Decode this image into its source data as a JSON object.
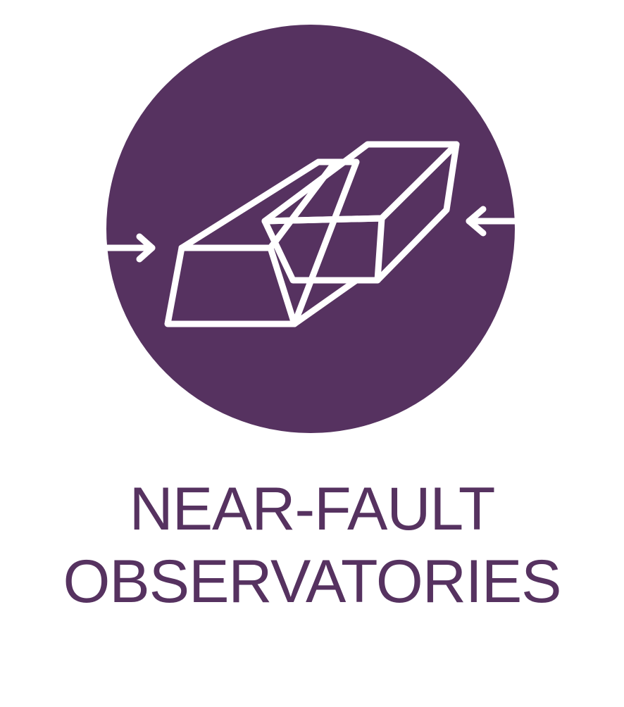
{
  "title": {
    "line1": "NEAR-FAULT",
    "line2": "OBSERVATORIES"
  },
  "icon": {
    "name": "fault-blocks-compression-icon",
    "description_free": true
  },
  "colors": {
    "brand_purple": "#563260",
    "icon_stroke": "#ffffff",
    "background": "#ffffff"
  }
}
